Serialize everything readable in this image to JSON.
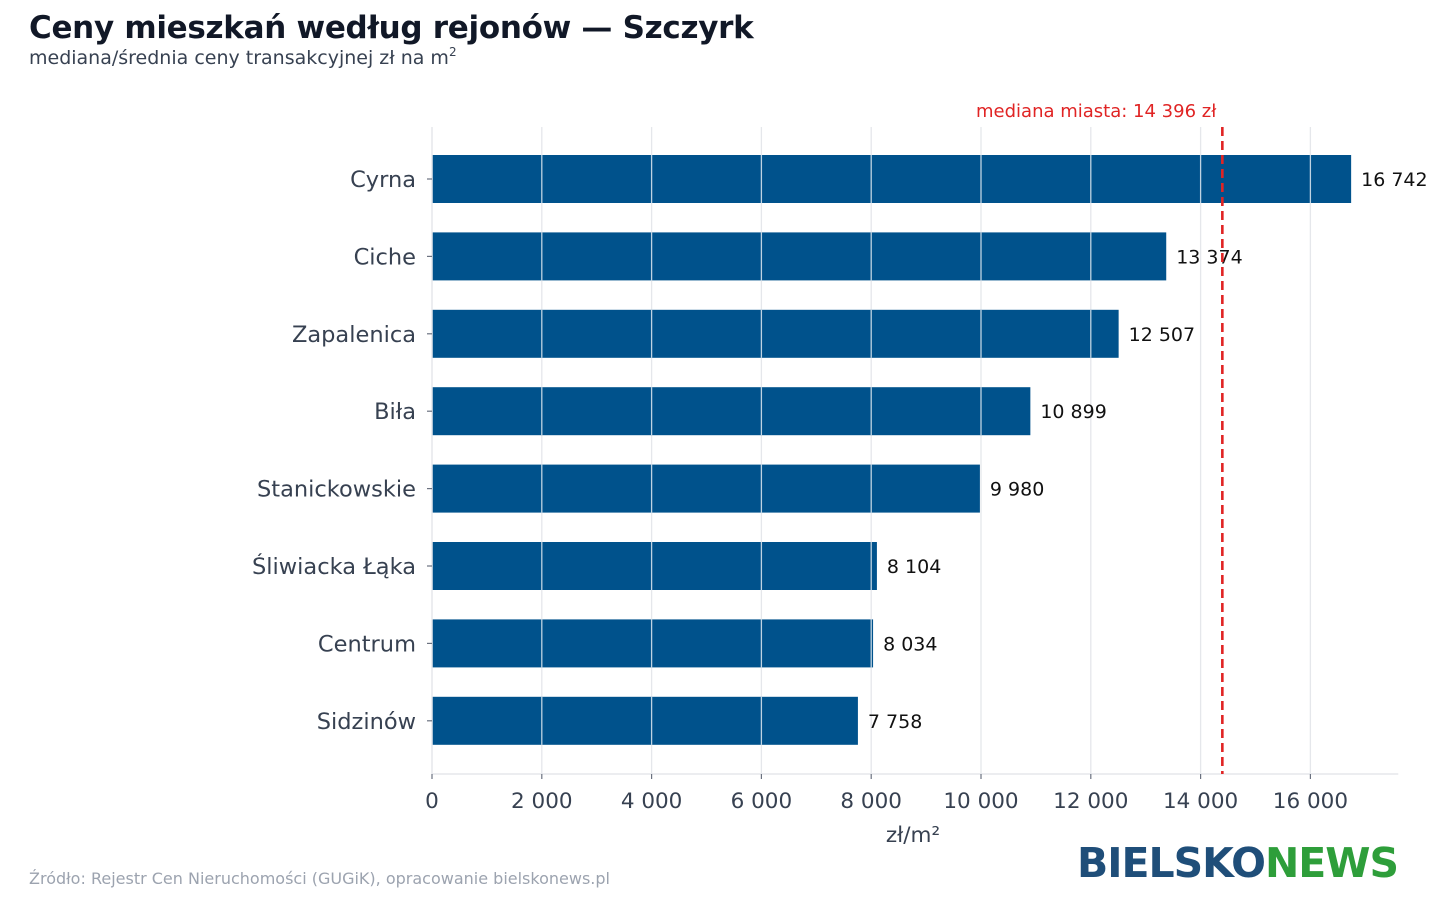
{
  "header": {
    "title": "Ceny mieszkań według rejonów — Szczyrk",
    "subtitle": "mediana/średnia ceny transakcyjnej zł na m",
    "subtitle_sup": "2"
  },
  "footer": {
    "source": "Źródło: Rejestr Cen Nieruchomości (GUGiK), opracowanie bielskonews.pl"
  },
  "logo": {
    "part1": "BIELSKO",
    "part2": "NEWS"
  },
  "colors": {
    "bar": "#00528c",
    "median_line": "#e02424",
    "grid": "#e5e7eb",
    "text": "#374151"
  },
  "chart_data": {
    "type": "bar",
    "orientation": "horizontal",
    "categories": [
      "Cyrna",
      "Ciche",
      "Zapalenica",
      "Biła",
      "Stanickowskie",
      "Śliwiacka Łąka",
      "Centrum",
      "Sidzinów"
    ],
    "values": [
      16742,
      13374,
      12507,
      10899,
      9980,
      8104,
      8034,
      7758
    ],
    "value_labels": [
      "16 742",
      "13 374",
      "12 507",
      "10 899",
      "9 980",
      "8 104",
      "8 034",
      "7 758"
    ],
    "xlabel": "zł/m²",
    "xlim": [
      0,
      17600
    ],
    "xticks": [
      0,
      2000,
      4000,
      6000,
      8000,
      10000,
      12000,
      14000,
      16000
    ],
    "xtick_labels": [
      "0",
      "2 000",
      "4 000",
      "6 000",
      "8 000",
      "10 000",
      "12 000",
      "14 000",
      "16 000"
    ],
    "grid": true,
    "reference_line": {
      "value": 14396,
      "label": "mediana miasta: 14 396 zł",
      "style": "dashed"
    }
  }
}
